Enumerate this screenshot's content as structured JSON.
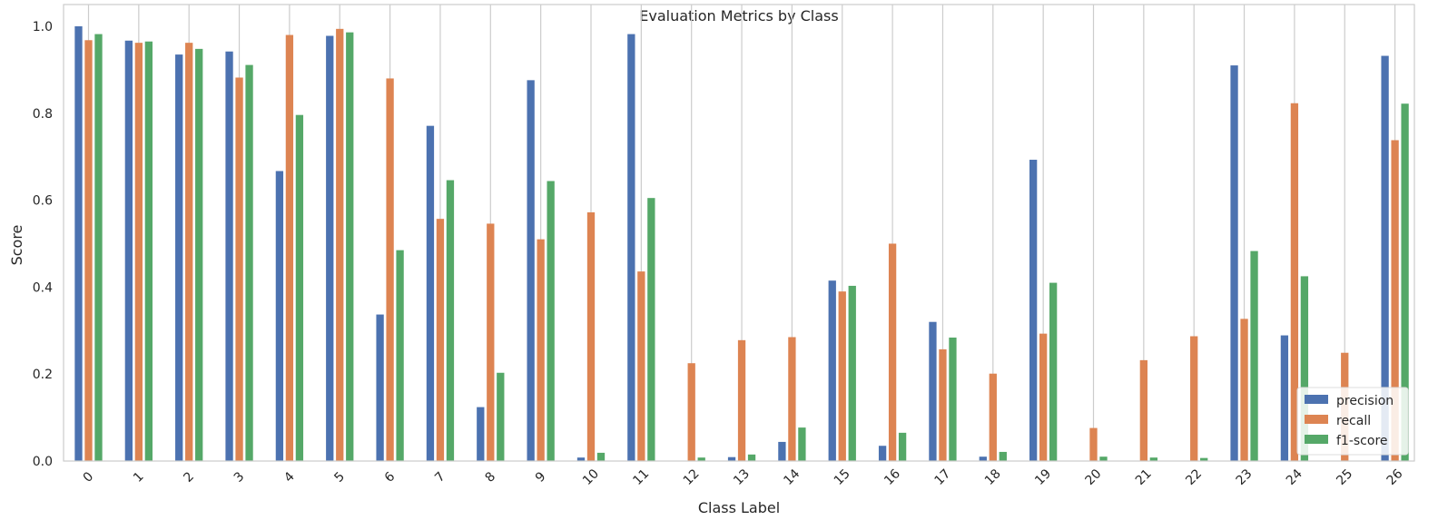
{
  "chart_data": {
    "type": "bar",
    "title": "Evaluation Metrics by Class",
    "xlabel": "Class Label",
    "ylabel": "Score",
    "ylim": [
      0,
      1.05
    ],
    "yticks": [
      "0.0",
      "0.2",
      "0.4",
      "0.6",
      "0.8",
      "1.0"
    ],
    "grid": "vertical",
    "legend_position": "bottom-right",
    "categories": [
      "0",
      "1",
      "2",
      "3",
      "4",
      "5",
      "6",
      "7",
      "8",
      "9",
      "10",
      "11",
      "12",
      "13",
      "14",
      "15",
      "16",
      "17",
      "18",
      "19",
      "20",
      "21",
      "22",
      "23",
      "24",
      "25",
      "26"
    ],
    "series": [
      {
        "name": "precision",
        "color": "#4c72b0",
        "values": [
          1.0,
          0.967,
          0.935,
          0.942,
          0.667,
          0.978,
          0.337,
          0.771,
          0.124,
          0.876,
          0.008,
          0.982,
          0.0,
          0.009,
          0.044,
          0.415,
          0.035,
          0.32,
          0.01,
          0.693,
          0.0,
          0.0,
          0.0,
          0.91,
          0.289,
          0.0,
          0.932
        ]
      },
      {
        "name": "recall",
        "color": "#dd8452",
        "values": [
          0.968,
          0.962,
          0.962,
          0.882,
          0.98,
          0.994,
          0.88,
          0.557,
          0.546,
          0.51,
          0.572,
          0.436,
          0.225,
          0.278,
          0.285,
          0.39,
          0.5,
          0.257,
          0.201,
          0.293,
          0.076,
          0.232,
          0.287,
          0.327,
          0.823,
          0.249,
          0.738
        ]
      },
      {
        "name": "f1-score",
        "color": "#55a868",
        "values": [
          0.982,
          0.965,
          0.948,
          0.911,
          0.796,
          0.986,
          0.485,
          0.646,
          0.203,
          0.644,
          0.019,
          0.605,
          0.008,
          0.015,
          0.077,
          0.403,
          0.065,
          0.284,
          0.021,
          0.41,
          0.01,
          0.008,
          0.007,
          0.483,
          0.425,
          0.0,
          0.822
        ]
      }
    ]
  }
}
